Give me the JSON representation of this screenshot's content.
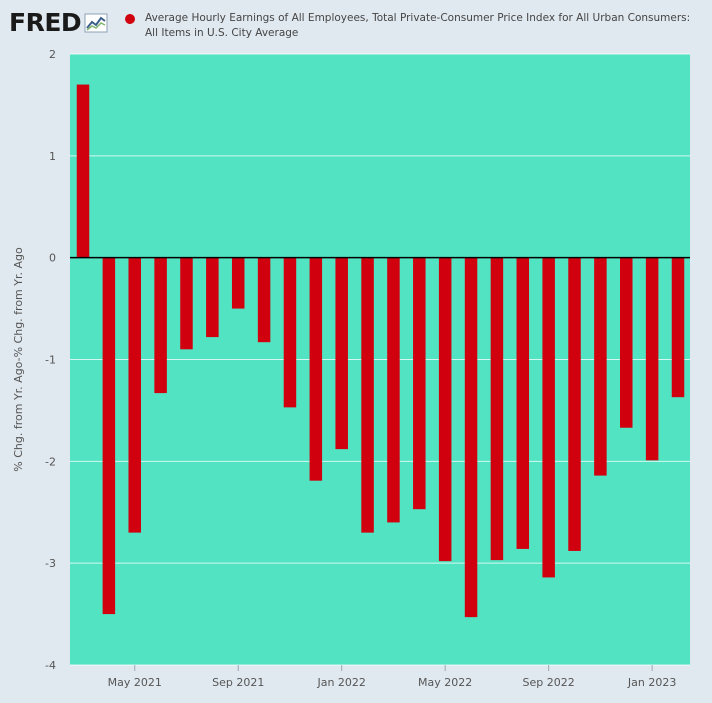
{
  "header": {
    "logo_text": "FRED",
    "legend_label": "Average Hourly Earnings of All Employees, Total Private-Consumer Price Index for All Urban Consumers: All Items in U.S. City Average"
  },
  "colors": {
    "plot_bg": "#52e3c2",
    "bar": "#d1000f",
    "page_bg": "#e1e9f0"
  },
  "chart_data": {
    "type": "bar",
    "ylabel": "% Chg. from Yr. Ago-% Chg. from Yr. Ago",
    "ylim": [
      -4,
      2
    ],
    "yticks": [
      2,
      1,
      0,
      -1,
      -2,
      -3,
      -4
    ],
    "grid": true,
    "legend_placement": "top",
    "x_tick_labels": [
      "May 2021",
      "Sep 2021",
      "Jan 2022",
      "May 2022",
      "Sep 2022",
      "Jan 2023"
    ],
    "x_tick_categories": [
      "2021-05",
      "2021-09",
      "2022-01",
      "2022-05",
      "2022-09",
      "2023-01"
    ],
    "categories": [
      "2021-03",
      "2021-04",
      "2021-05",
      "2021-06",
      "2021-07",
      "2021-08",
      "2021-09",
      "2021-10",
      "2021-11",
      "2021-12",
      "2022-01",
      "2022-02",
      "2022-03",
      "2022-04",
      "2022-05",
      "2022-06",
      "2022-07",
      "2022-08",
      "2022-09",
      "2022-10",
      "2022-11",
      "2022-12",
      "2023-01",
      "2023-02"
    ],
    "series": [
      {
        "values": [
          1.7,
          -3.5,
          -2.7,
          -1.33,
          -0.9,
          -0.78,
          -0.5,
          -0.83,
          -1.47,
          -2.19,
          -1.88,
          -2.7,
          -2.6,
          -2.47,
          -2.98,
          -3.53,
          -2.97,
          -2.86,
          -3.14,
          -2.88,
          -2.14,
          -1.67,
          -1.99,
          -1.37
        ]
      }
    ]
  }
}
